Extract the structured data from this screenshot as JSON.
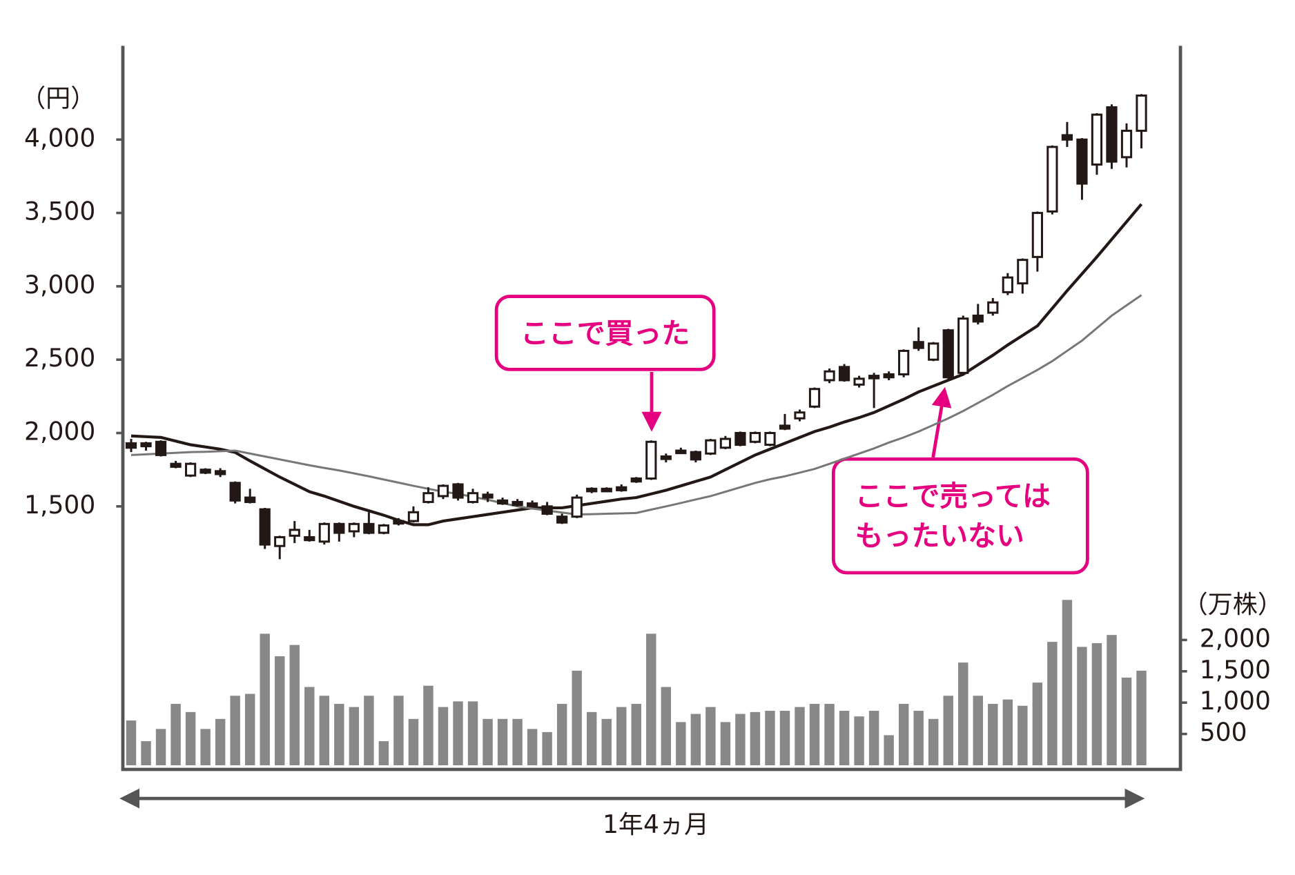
{
  "chart_data": {
    "type": "candlestick",
    "y_unit": "（円）",
    "ylim": [
      1000,
      4500
    ],
    "yticks": [
      {
        "value": 1500,
        "label": "1,500"
      },
      {
        "value": 2000,
        "label": "2,000"
      },
      {
        "value": 2500,
        "label": "2,500"
      },
      {
        "value": 3000,
        "label": "3,000"
      },
      {
        "value": 3500,
        "label": "3,500"
      },
      {
        "value": 4000,
        "label": "4,000"
      }
    ],
    "candles": {
      "up_color": "#ffffff",
      "down_color": "#231815",
      "open": [
        1930,
        1930,
        1940,
        1790,
        1710,
        1750,
        1740,
        1660,
        1560,
        1480,
        1230,
        1300,
        1290,
        1260,
        1380,
        1330,
        1380,
        1320,
        1400,
        1400,
        1530,
        1570,
        1650,
        1530,
        1580,
        1540,
        1530,
        1520,
        1500,
        1430,
        1430,
        1620,
        1620,
        1630,
        1690,
        1690,
        1840,
        1880,
        1870,
        1860,
        1900,
        2000,
        1940,
        1920,
        2050,
        2100,
        2180,
        2360,
        2450,
        2330,
        2390,
        2400,
        2400,
        2620,
        2500,
        2700,
        2410,
        2800,
        2820,
        2960,
        3020,
        3200,
        3510,
        4030,
        4000,
        3830,
        4220,
        3880,
        4060
      ],
      "high": [
        1960,
        1940,
        1950,
        1810,
        1800,
        1760,
        1760,
        1670,
        1620,
        1490,
        1300,
        1400,
        1340,
        1390,
        1390,
        1390,
        1460,
        1380,
        1420,
        1500,
        1630,
        1650,
        1660,
        1620,
        1600,
        1560,
        1550,
        1540,
        1530,
        1450,
        1580,
        1630,
        1630,
        1650,
        1700,
        1950,
        1860,
        1900,
        1880,
        1960,
        1980,
        2010,
        2010,
        2010,
        2130,
        2160,
        2310,
        2440,
        2470,
        2390,
        2410,
        2420,
        2570,
        2720,
        2620,
        2710,
        2800,
        2880,
        2920,
        3090,
        3190,
        3510,
        3960,
        4120,
        4010,
        4180,
        4240,
        4110,
        4310
      ],
      "low": [
        1870,
        1880,
        1840,
        1760,
        1700,
        1720,
        1700,
        1520,
        1520,
        1210,
        1140,
        1250,
        1260,
        1240,
        1260,
        1290,
        1310,
        1310,
        1370,
        1390,
        1520,
        1550,
        1540,
        1520,
        1530,
        1510,
        1500,
        1500,
        1440,
        1380,
        1420,
        1590,
        1600,
        1600,
        1660,
        1680,
        1800,
        1860,
        1800,
        1850,
        1890,
        1910,
        1930,
        1910,
        2020,
        2080,
        2170,
        2340,
        2350,
        2310,
        2170,
        2360,
        2380,
        2560,
        2490,
        2370,
        2400,
        2740,
        2800,
        2940,
        2950,
        3100,
        3490,
        3950,
        3590,
        3760,
        3800,
        3810,
        3940
      ],
      "close": [
        1900,
        1910,
        1850,
        1770,
        1790,
        1730,
        1720,
        1540,
        1530,
        1240,
        1290,
        1340,
        1270,
        1380,
        1320,
        1380,
        1320,
        1370,
        1390,
        1460,
        1590,
        1640,
        1560,
        1590,
        1560,
        1520,
        1510,
        1510,
        1450,
        1390,
        1560,
        1610,
        1610,
        1610,
        1670,
        1940,
        1830,
        1870,
        1820,
        1950,
        1960,
        1920,
        2000,
        2000,
        2030,
        2140,
        2300,
        2420,
        2360,
        2370,
        2380,
        2380,
        2560,
        2580,
        2610,
        2380,
        2780,
        2760,
        2890,
        3060,
        3180,
        3500,
        3950,
        4000,
        3700,
        4170,
        3850,
        4060,
        4300
      ]
    },
    "moving_averages": [
      {
        "color": "#231815",
        "values": [
          1980,
          1975,
          1970,
          1945,
          1920,
          1905,
          1890,
          1868,
          1810,
          1755,
          1700,
          1650,
          1600,
          1570,
          1535,
          1500,
          1470,
          1440,
          1405,
          1375,
          1375,
          1400,
          1415,
          1430,
          1445,
          1460,
          1475,
          1490,
          1490,
          1490,
          1505,
          1520,
          1535,
          1550,
          1560,
          1585,
          1610,
          1640,
          1670,
          1700,
          1750,
          1800,
          1850,
          1890,
          1930,
          1970,
          2010,
          2040,
          2075,
          2105,
          2140,
          2185,
          2230,
          2280,
          2320,
          2360,
          2400,
          2465,
          2530,
          2600,
          2665,
          2730,
          2850,
          2970,
          3085,
          3200,
          3320,
          3440,
          3560
        ]
      },
      {
        "color": "#777777",
        "values": [
          1850,
          1855,
          1860,
          1865,
          1870,
          1872,
          1876,
          1880,
          1860,
          1840,
          1820,
          1800,
          1780,
          1762,
          1745,
          1725,
          1705,
          1683,
          1662,
          1640,
          1620,
          1600,
          1585,
          1565,
          1545,
          1522,
          1500,
          1485,
          1472,
          1458,
          1445,
          1447,
          1450,
          1452,
          1455,
          1478,
          1500,
          1523,
          1547,
          1570,
          1600,
          1630,
          1660,
          1685,
          1705,
          1730,
          1755,
          1790,
          1825,
          1860,
          1895,
          1935,
          1970,
          2010,
          2055,
          2100,
          2150,
          2205,
          2260,
          2320,
          2375,
          2430,
          2490,
          2560,
          2630,
          2715,
          2800,
          2870,
          2940
        ]
      }
    ],
    "volume": {
      "unit": "（万株）",
      "color": "#888888",
      "ylim": [
        0,
        2500
      ],
      "yticks": [
        500,
        {
          "value": 1000,
          "label": "1,000"
        },
        {
          "value": 1500,
          "label": "1,500"
        },
        {
          "value": 2000,
          "label": "2,000"
        }
      ],
      "values": [
        715,
        385,
        580,
        980,
        850,
        580,
        740,
        1110,
        1140,
        2100,
        1740,
        1920,
        1250,
        1110,
        980,
        930,
        1110,
        385,
        1110,
        740,
        1270,
        930,
        1020,
        1020,
        740,
        740,
        740,
        580,
        530,
        980,
        1510,
        850,
        740,
        930,
        980,
        2100,
        1250,
        690,
        820,
        930,
        690,
        820,
        850,
        870,
        870,
        930,
        980,
        980,
        870,
        780,
        870,
        480,
        980,
        870,
        740,
        1110,
        1640,
        1110,
        980,
        1050,
        950,
        1320,
        1970,
        2640,
        1890,
        1950,
        2080,
        1400,
        1510
      ]
    },
    "annotations": [
      {
        "lines": [
          "ここで買った"
        ]
      },
      {
        "lines": [
          "ここで売っては",
          "もったいない"
        ]
      }
    ],
    "period_label": "1年4ヵ月"
  }
}
